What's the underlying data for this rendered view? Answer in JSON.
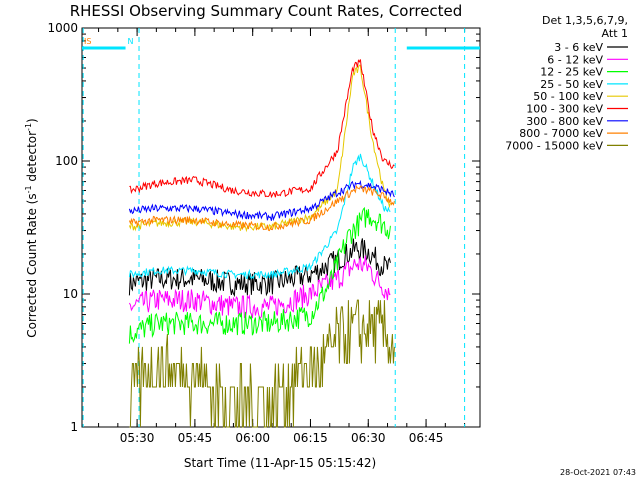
{
  "chart_data": {
    "type": "line",
    "title": "RHESSI Observing Summary Count Rates, Corrected",
    "xlabel": "Start Time (11-Apr-15 05:15:42)",
    "ylabel_main": "Corrected Count Rate (s",
    "ylabel_sup1": "-1",
    "ylabel_mid": " detector",
    "ylabel_sup2": "-1",
    "ylabel_end": ")",
    "yscale": "log",
    "ylim": [
      1,
      1000
    ],
    "xlim_minutes": [
      "05:15:42",
      "06:59:00"
    ],
    "x_ticks": [
      "05:30",
      "05:45",
      "06:00",
      "06:15",
      "06:30",
      "06:45"
    ],
    "y_ticks": [
      "1",
      "10",
      "100",
      "1000"
    ],
    "legend_header": [
      "Det 1,3,5,6,7,9,",
      "Att 1"
    ],
    "timestamp": "28-Oct-2021 07:43",
    "flags": [
      {
        "label": "IS",
        "start": "05:15:42",
        "end": "05:27:00",
        "color": "#00e5ff"
      },
      {
        "label": "N",
        "start": "05:27:00",
        "end": "05:27:00",
        "color": "#00e5ff"
      },
      {
        "label": "",
        "start": "06:40:00",
        "end": "06:59:00",
        "color": "#00e5ff"
      }
    ],
    "vlines": [
      "05:16:00",
      "05:30:30",
      "06:37:00",
      "06:55:00"
    ],
    "series": [
      {
        "name": "3 - 6 keV",
        "color": "#000000",
        "x": [
          "05:28",
          "05:35",
          "05:45",
          "05:55",
          "06:05",
          "06:15",
          "06:22",
          "06:27",
          "06:30",
          "06:33",
          "06:36"
        ],
        "values": [
          12,
          13,
          13,
          12,
          12,
          14,
          18,
          22,
          21,
          17,
          15
        ]
      },
      {
        "name": "6 - 12 keV",
        "color": "#ff00ff",
        "x": [
          "05:28",
          "05:35",
          "05:45",
          "05:55",
          "06:05",
          "06:15",
          "06:22",
          "06:27",
          "06:30",
          "06:33",
          "06:36"
        ],
        "values": [
          8,
          9,
          9,
          8,
          8,
          10,
          13,
          17,
          16,
          12,
          10
        ]
      },
      {
        "name": "12 - 25 keV",
        "color": "#00ff00",
        "x": [
          "05:28",
          "05:35",
          "05:45",
          "05:55",
          "06:05",
          "06:15",
          "06:20",
          "06:25",
          "06:30",
          "06:33",
          "06:36"
        ],
        "values": [
          5,
          6,
          6,
          6,
          6,
          7,
          12,
          28,
          40,
          35,
          30
        ]
      },
      {
        "name": "25 - 50 keV",
        "color": "#00e5ff",
        "x": [
          "05:28",
          "05:35",
          "05:45",
          "05:55",
          "06:05",
          "06:15",
          "06:22",
          "06:26",
          "06:28",
          "06:31",
          "06:34",
          "06:36"
        ],
        "values": [
          14,
          15,
          15,
          14,
          14,
          16,
          30,
          90,
          110,
          70,
          45,
          40
        ]
      },
      {
        "name": "50 - 100 keV",
        "color": "#e6c800",
        "x": [
          "05:28",
          "05:35",
          "05:45",
          "05:55",
          "06:05",
          "06:15",
          "06:22",
          "06:26",
          "06:28",
          "06:31",
          "06:34",
          "06:36"
        ],
        "values": [
          32,
          34,
          35,
          32,
          32,
          38,
          60,
          450,
          500,
          150,
          60,
          45
        ]
      },
      {
        "name": "100 - 300 keV",
        "color": "#ff0000",
        "x": [
          "05:28",
          "05:35",
          "05:45",
          "05:55",
          "06:05",
          "06:15",
          "06:22",
          "06:26",
          "06:28",
          "06:31",
          "06:34",
          "06:37"
        ],
        "values": [
          60,
          68,
          72,
          60,
          56,
          62,
          120,
          500,
          550,
          180,
          100,
          90
        ]
      },
      {
        "name": "300 - 800 keV",
        "color": "#0000ff",
        "x": [
          "05:28",
          "05:35",
          "05:45",
          "05:55",
          "06:05",
          "06:15",
          "06:22",
          "06:27",
          "06:30",
          "06:33",
          "06:37"
        ],
        "values": [
          42,
          44,
          44,
          40,
          38,
          44,
          58,
          68,
          66,
          62,
          55
        ]
      },
      {
        "name": "800 - 7000 keV",
        "color": "#ff8000",
        "x": [
          "05:28",
          "05:35",
          "05:45",
          "05:55",
          "06:05",
          "06:15",
          "06:22",
          "06:27",
          "06:30",
          "06:33",
          "06:37"
        ],
        "values": [
          34,
          36,
          36,
          33,
          32,
          36,
          50,
          62,
          60,
          56,
          48
        ]
      },
      {
        "name": "7000 - 15000 keV",
        "color": "#808000",
        "x": [
          "05:28",
          "05:35",
          "05:45",
          "05:55",
          "06:05",
          "06:12",
          "06:18",
          "06:22",
          "06:27",
          "06:30",
          "06:34",
          "06:37"
        ],
        "values": [
          1.8,
          2.8,
          2.5,
          1.5,
          1.5,
          2.5,
          3,
          4.5,
          5.5,
          5.5,
          5,
          4
        ]
      }
    ]
  }
}
